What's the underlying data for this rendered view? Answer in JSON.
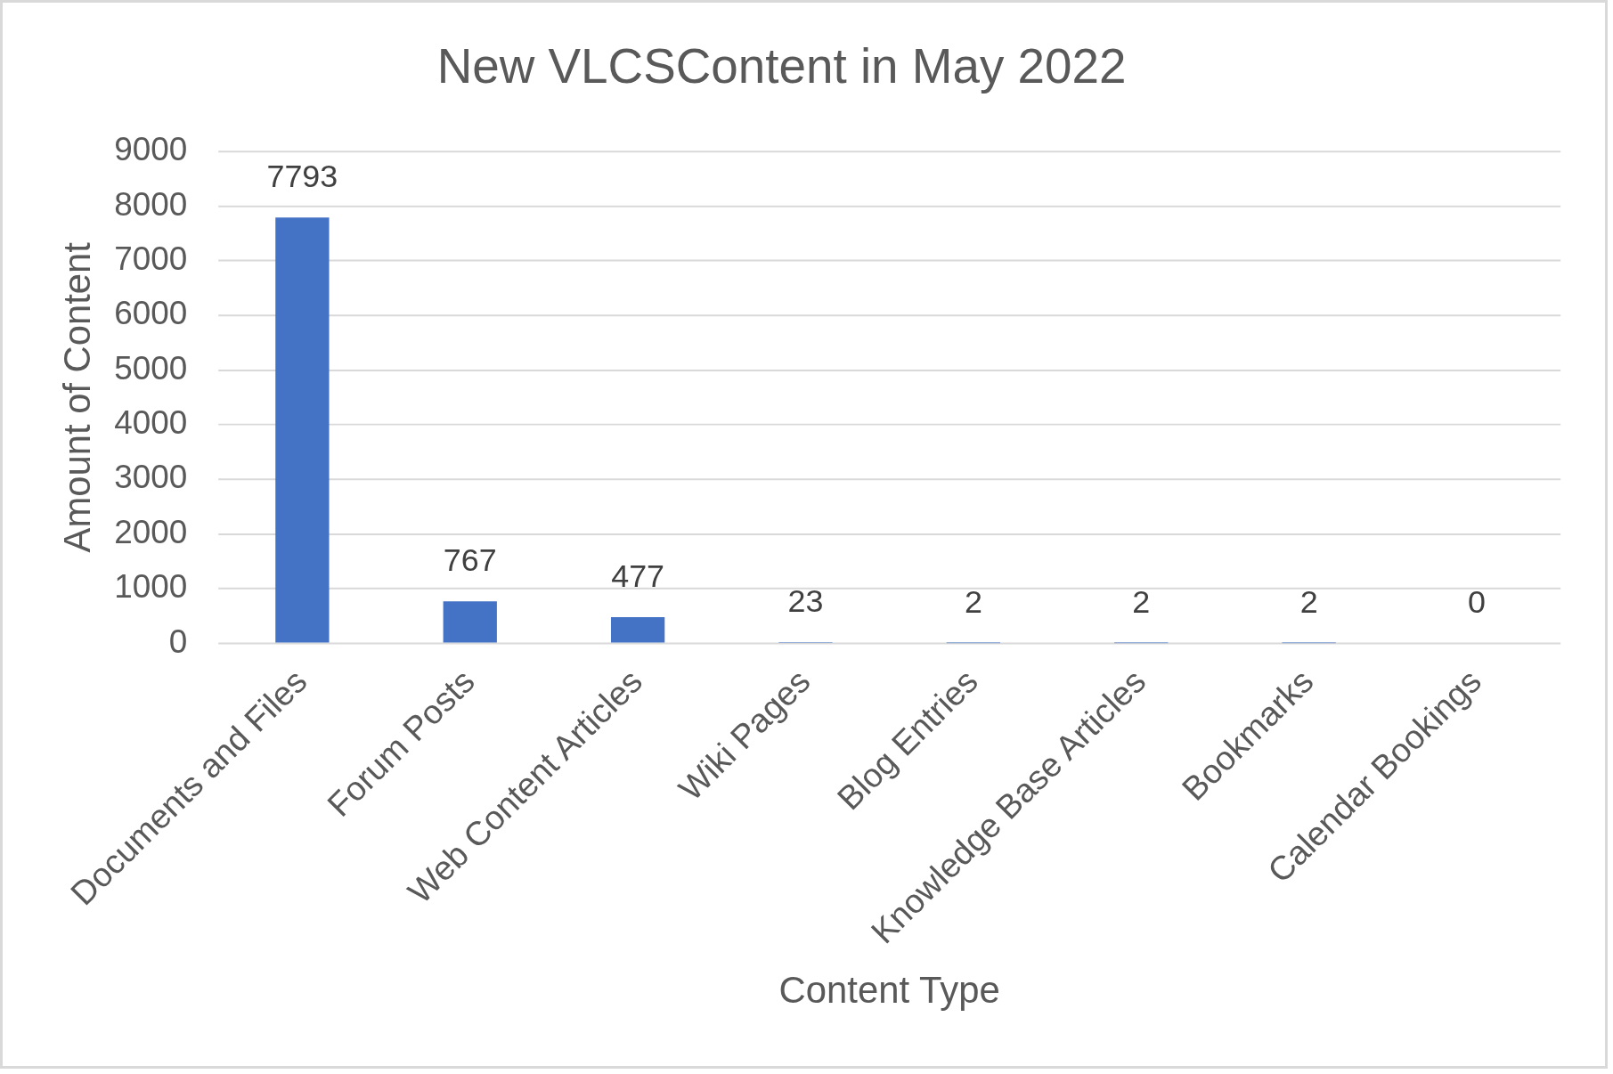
{
  "chart_data": {
    "type": "bar",
    "title": "New VLCSContent in May 2022",
    "xlabel": "Content Type",
    "ylabel": "Amount of Content",
    "categories": [
      "Documents and Files",
      "Forum Posts",
      "Web Content Articles",
      "Wiki Pages",
      "Blog Entries",
      "Knowledge Base Articles",
      "Bookmarks",
      "Calendar Bookings"
    ],
    "values": [
      7793,
      767,
      477,
      23,
      2,
      2,
      2,
      0
    ],
    "color": "#4472c4",
    "ylim": [
      0,
      9000
    ],
    "yticks": [
      0,
      1000,
      2000,
      3000,
      4000,
      5000,
      6000,
      7000,
      8000,
      9000
    ],
    "grid": "y",
    "data_labels": true
  }
}
